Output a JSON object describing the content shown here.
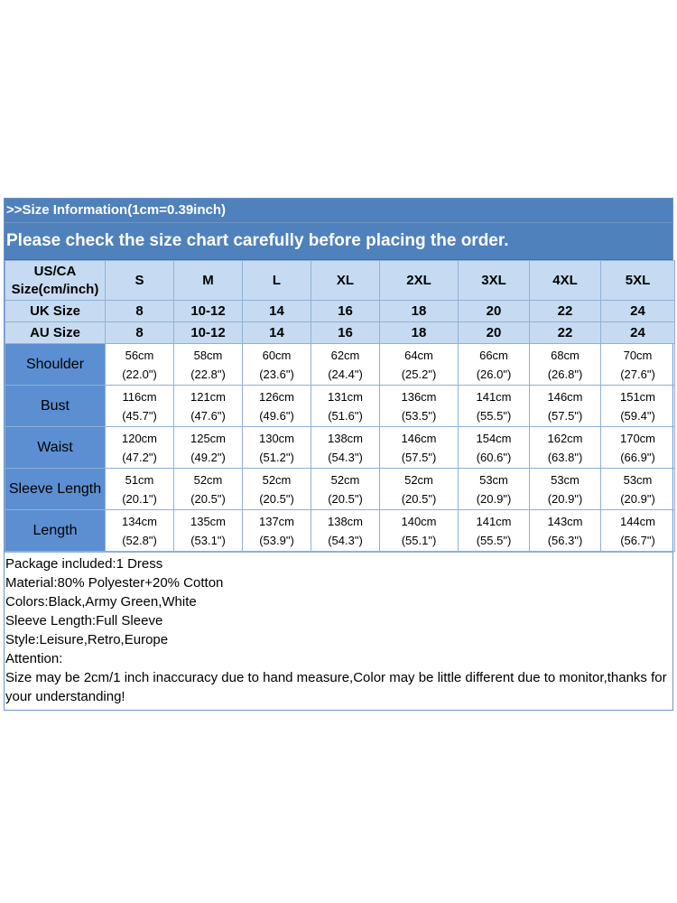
{
  "banner": {
    "line1": ">>Size Information(1cm=0.39inch)",
    "line2": "Please check the size chart carefully before placing the order."
  },
  "header": {
    "label_line1": "US/CA",
    "label_line2": "Size(cm/inch)",
    "sizes": [
      "S",
      "M",
      "L",
      "XL",
      "2XL",
      "3XL",
      "4XL",
      "5XL"
    ]
  },
  "uk": {
    "label": "UK Size",
    "values": [
      "8",
      "10-12",
      "14",
      "16",
      "18",
      "20",
      "22",
      "24"
    ]
  },
  "au": {
    "label": "AU Size",
    "values": [
      "8",
      "10-12",
      "14",
      "16",
      "18",
      "20",
      "22",
      "24"
    ]
  },
  "measurements": [
    {
      "label": "Shoulder",
      "cm": [
        "56cm",
        "58cm",
        "60cm",
        "62cm",
        "64cm",
        "66cm",
        "68cm",
        "70cm"
      ],
      "inch": [
        "(22.0\")",
        "(22.8\")",
        "(23.6\")",
        "(24.4\")",
        "(25.2\")",
        "(26.0\")",
        "(26.8\")",
        "(27.6\")"
      ]
    },
    {
      "label": "Bust",
      "cm": [
        "116cm",
        "121cm",
        "126cm",
        "131cm",
        "136cm",
        "141cm",
        "146cm",
        "151cm"
      ],
      "inch": [
        "(45.7\")",
        "(47.6\")",
        "(49.6\")",
        "(51.6\")",
        "(53.5\")",
        "(55.5\")",
        "(57.5\")",
        "(59.4\")"
      ]
    },
    {
      "label": "Waist",
      "cm": [
        "120cm",
        "125cm",
        "130cm",
        "138cm",
        "146cm",
        "154cm",
        "162cm",
        "170cm"
      ],
      "inch": [
        "(47.2\")",
        "(49.2\")",
        "(51.2\")",
        "(54.3\")",
        "(57.5\")",
        "(60.6\")",
        "(63.8\")",
        "(66.9\")"
      ]
    },
    {
      "label": "Sleeve Length",
      "cm": [
        "51cm",
        "52cm",
        "52cm",
        "52cm",
        "52cm",
        "53cm",
        "53cm",
        "53cm"
      ],
      "inch": [
        "(20.1\")",
        "(20.5\")",
        "(20.5\")",
        "(20.5\")",
        "(20.5\")",
        "(20.9\")",
        "(20.9\")",
        "(20.9\")"
      ]
    },
    {
      "label": "Length",
      "cm": [
        "134cm",
        "135cm",
        "137cm",
        "138cm",
        "140cm",
        "141cm",
        "143cm",
        "144cm"
      ],
      "inch": [
        "(52.8\")",
        "(53.1\")",
        "(53.9\")",
        "(54.3\")",
        "(55.1\")",
        "(55.5\")",
        "(56.3\")",
        "(56.7\")"
      ]
    }
  ],
  "notes": [
    "Package included:1 Dress",
    "Material:80% Polyester+20% Cotton",
    "Colors:Black,Army Green,White",
    "Sleeve Length:Full Sleeve",
    "Style:Leisure,Retro,Europe",
    "Attention:",
    "Size may be 2cm/1 inch inaccuracy due to hand measure,Color may be little different due to monitor,thanks for your understanding!"
  ],
  "colors": {
    "banner": "#4f81bd",
    "header_row": "#c6dbf1",
    "measure_label": "#5b8fd2",
    "grid": "#8fb0d8"
  }
}
